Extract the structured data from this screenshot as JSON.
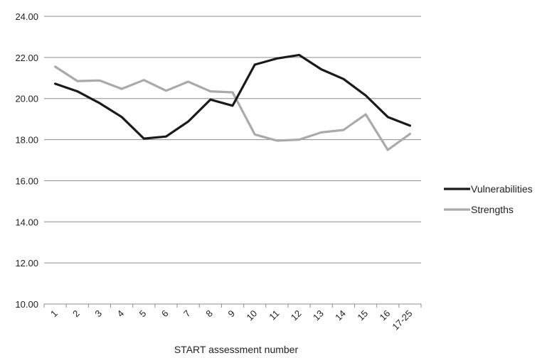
{
  "chart_data": {
    "type": "line",
    "title": "",
    "xlabel": "START assessment number",
    "ylabel": "",
    "categories": [
      "1",
      "2",
      "3",
      "4",
      "5",
      "6",
      "7",
      "8",
      "9",
      "10",
      "11",
      "12",
      "13",
      "14",
      "15",
      "16",
      "17-25"
    ],
    "ylim": [
      10,
      24
    ],
    "yticks": [
      "10.00",
      "12.00",
      "14.00",
      "16.00",
      "18.00",
      "20.00",
      "22.00",
      "24.00"
    ],
    "grid": "horizontal",
    "legend_position": "right",
    "series": [
      {
        "name": "Vulnerabilities",
        "color": "#1a1a1a",
        "values": [
          20.72,
          20.35,
          19.78,
          19.1,
          18.05,
          18.15,
          18.88,
          19.95,
          19.65,
          21.65,
          21.95,
          22.12,
          21.42,
          20.95,
          20.15,
          19.1,
          18.68
        ]
      },
      {
        "name": "Strengths",
        "color": "#aaaaaa",
        "values": [
          21.55,
          20.85,
          20.88,
          20.47,
          20.9,
          20.38,
          20.82,
          20.35,
          20.3,
          18.25,
          17.95,
          18.0,
          18.35,
          18.47,
          19.23,
          17.5,
          18.28
        ]
      }
    ]
  }
}
